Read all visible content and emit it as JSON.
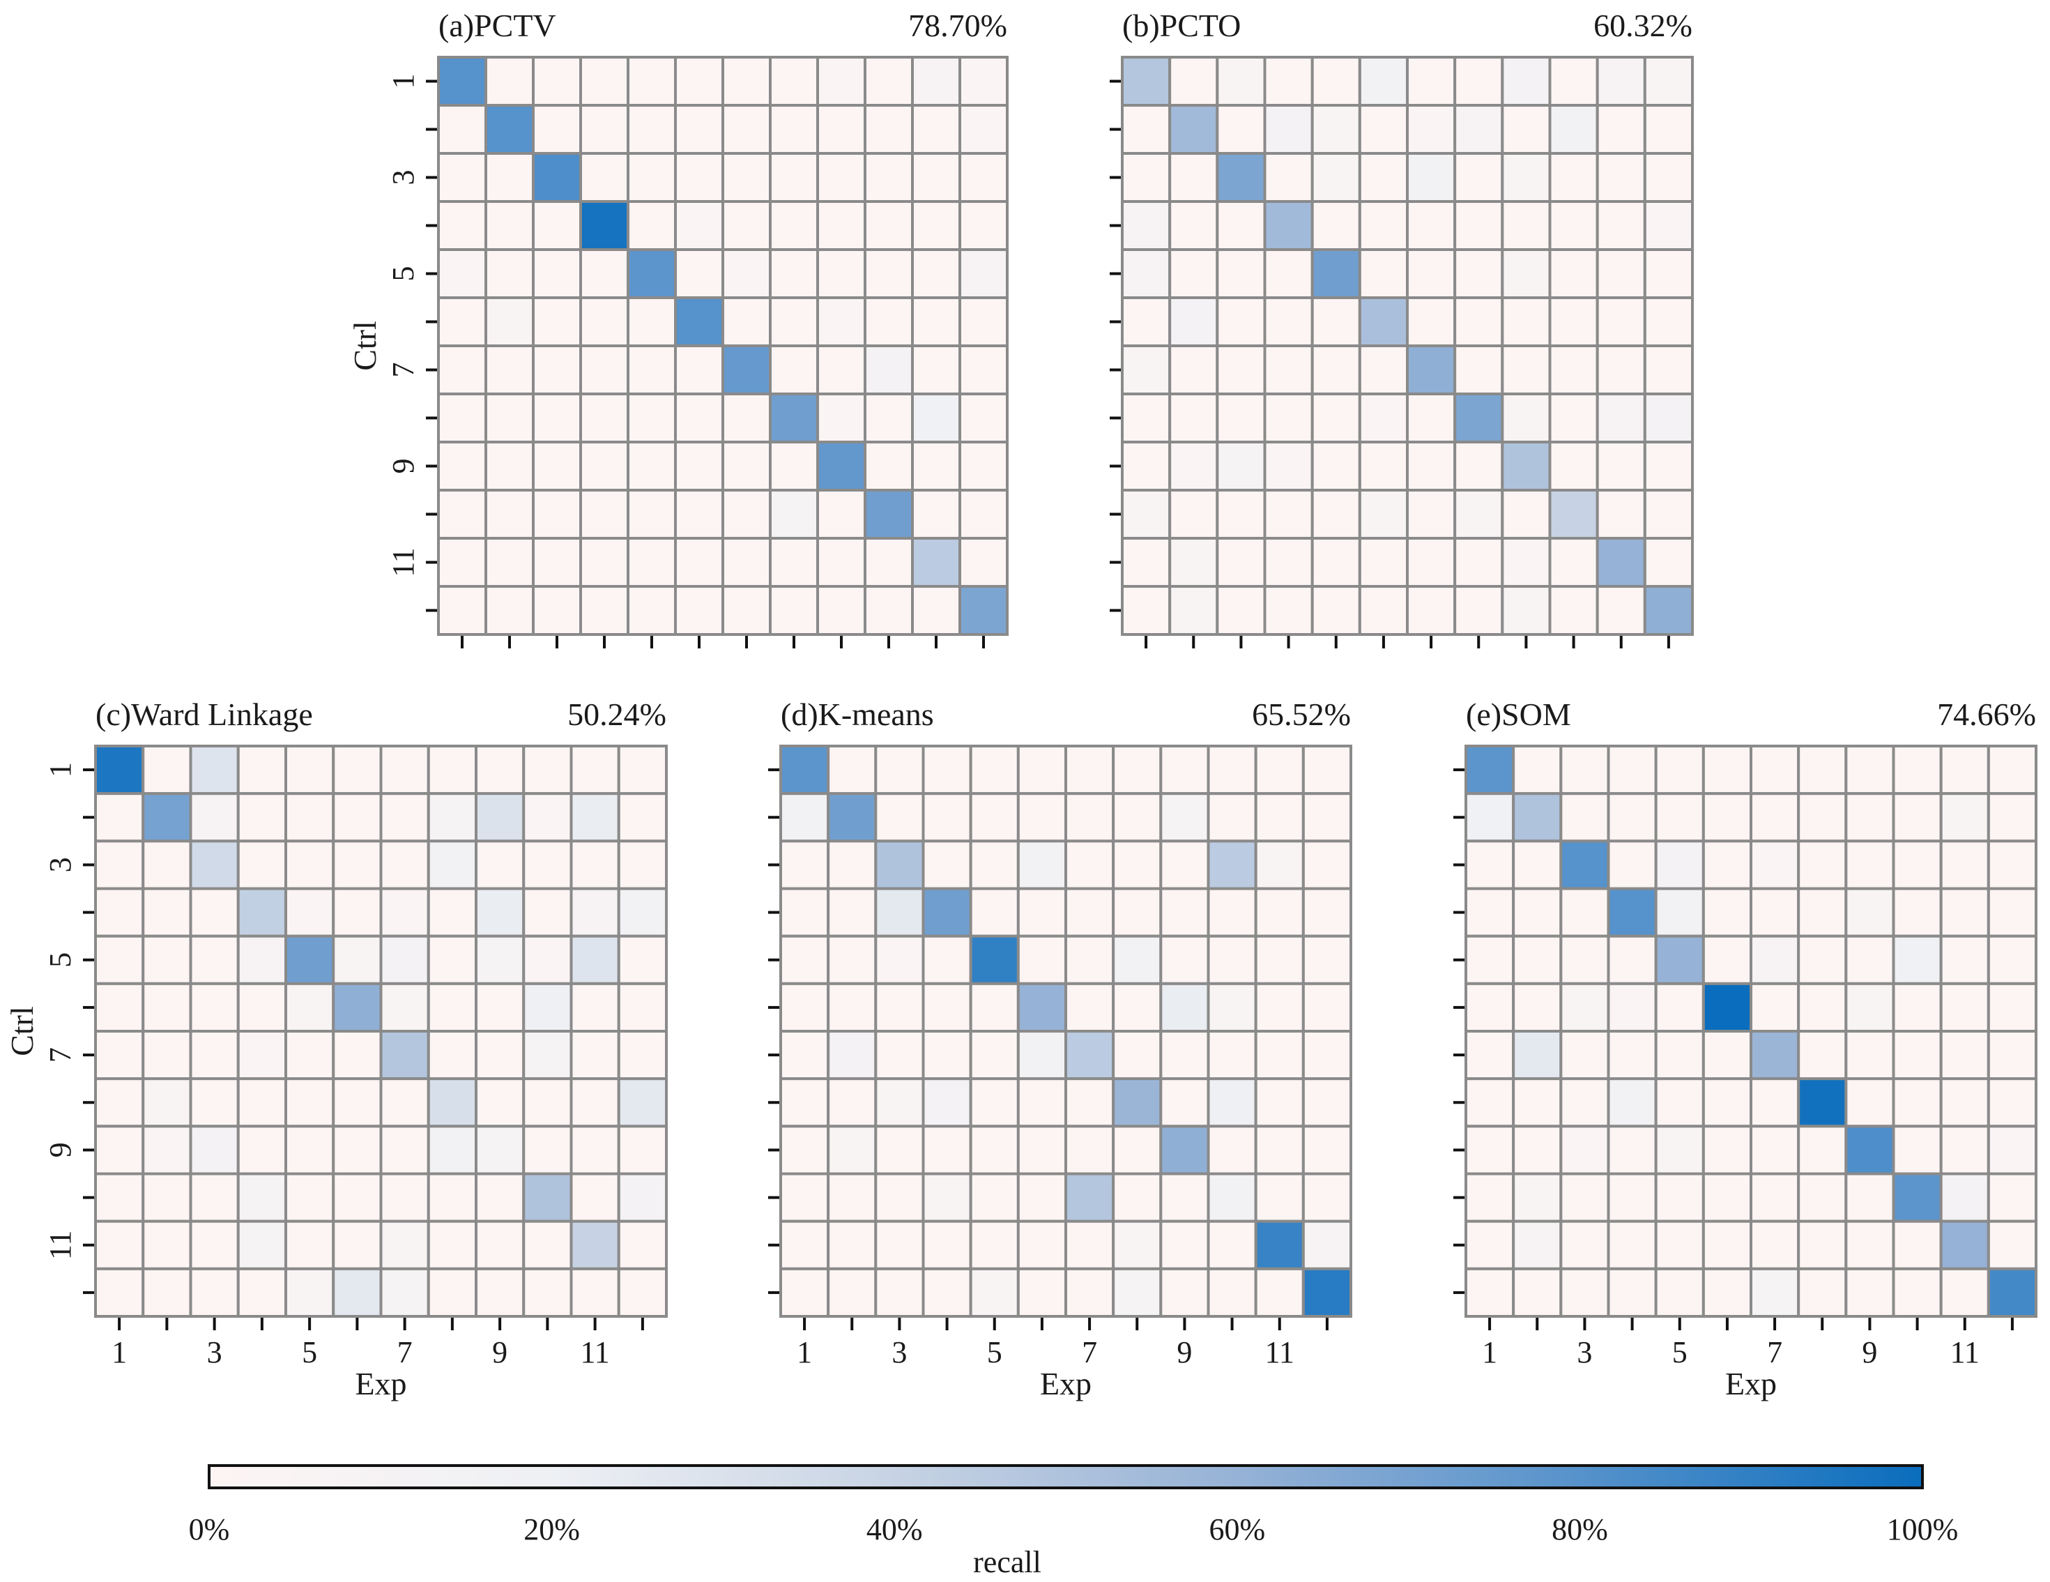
{
  "figure": {
    "colorbar": {
      "label": "recall",
      "ticks": [
        "0%",
        "20%",
        "40%",
        "60%",
        "80%",
        "100%"
      ],
      "range": [
        0,
        100
      ],
      "colors": [
        "#fdf5f4",
        "#eef0f4",
        "#c7d3e4",
        "#96b2d6",
        "#5692cb",
        "#0a6dbd"
      ]
    },
    "gridColor": "#8a8a8a",
    "cellEmpty": "#fdf5f4"
  },
  "chart_data": [
    {
      "type": "heatmap",
      "panel": "a",
      "title": "(a)PCTV",
      "score": "78.70%",
      "ylabel": "Ctrl",
      "xlabel": "",
      "yticklabels": [
        "1",
        "",
        "3",
        "",
        "5",
        "",
        "7",
        "",
        "9",
        "",
        "11",
        ""
      ],
      "xticklabels": [],
      "values": [
        [
          80,
          0,
          0,
          0,
          0,
          0,
          0,
          0,
          3,
          0,
          8,
          3
        ],
        [
          0,
          80,
          0,
          0,
          0,
          0,
          0,
          0,
          0,
          0,
          0,
          3
        ],
        [
          0,
          0,
          82,
          0,
          2,
          0,
          0,
          0,
          0,
          0,
          0,
          0
        ],
        [
          0,
          0,
          0,
          97,
          0,
          3,
          0,
          0,
          0,
          0,
          0,
          0
        ],
        [
          3,
          0,
          0,
          0,
          78,
          0,
          3,
          0,
          0,
          0,
          0,
          8
        ],
        [
          0,
          5,
          0,
          0,
          0,
          80,
          0,
          0,
          3,
          0,
          0,
          0
        ],
        [
          0,
          0,
          0,
          0,
          0,
          0,
          75,
          0,
          0,
          12,
          0,
          0
        ],
        [
          0,
          0,
          0,
          0,
          0,
          0,
          0,
          72,
          3,
          0,
          18,
          0
        ],
        [
          0,
          0,
          0,
          0,
          0,
          0,
          0,
          0,
          76,
          0,
          0,
          0
        ],
        [
          0,
          0,
          0,
          0,
          0,
          0,
          0,
          10,
          0,
          72,
          0,
          0
        ],
        [
          0,
          0,
          0,
          0,
          0,
          0,
          0,
          0,
          0,
          0,
          45,
          0
        ],
        [
          0,
          0,
          0,
          0,
          0,
          0,
          0,
          0,
          0,
          0,
          0,
          68
        ]
      ]
    },
    {
      "type": "heatmap",
      "panel": "b",
      "title": "(b)PCTO",
      "score": "60.32%",
      "ylabel": "",
      "xlabel": "",
      "yticklabels": [],
      "xticklabels": [],
      "values": [
        [
          48,
          0,
          5,
          0,
          0,
          15,
          0,
          0,
          12,
          0,
          8,
          5
        ],
        [
          0,
          55,
          0,
          12,
          5,
          0,
          3,
          8,
          0,
          15,
          0,
          0
        ],
        [
          0,
          0,
          68,
          0,
          5,
          0,
          15,
          0,
          5,
          0,
          0,
          0
        ],
        [
          8,
          0,
          0,
          55,
          0,
          0,
          0,
          0,
          0,
          0,
          0,
          3
        ],
        [
          8,
          0,
          0,
          0,
          72,
          0,
          0,
          0,
          5,
          0,
          0,
          0
        ],
        [
          0,
          12,
          0,
          0,
          0,
          52,
          0,
          0,
          0,
          0,
          0,
          0
        ],
        [
          5,
          0,
          0,
          0,
          0,
          0,
          62,
          0,
          0,
          0,
          0,
          0
        ],
        [
          0,
          0,
          0,
          0,
          0,
          3,
          0,
          68,
          5,
          0,
          8,
          12
        ],
        [
          0,
          3,
          10,
          3,
          0,
          0,
          0,
          0,
          50,
          0,
          0,
          0
        ],
        [
          5,
          0,
          0,
          0,
          0,
          5,
          0,
          5,
          0,
          40,
          0,
          0
        ],
        [
          0,
          5,
          0,
          0,
          0,
          0,
          0,
          0,
          3,
          0,
          60,
          0
        ],
        [
          0,
          5,
          0,
          0,
          0,
          0,
          0,
          0,
          5,
          0,
          0,
          62
        ]
      ]
    },
    {
      "type": "heatmap",
      "panel": "c",
      "title": "(c)Ward Linkage",
      "score": "50.24%",
      "ylabel": "Ctrl",
      "xlabel": "Exp",
      "yticklabels": [
        "1",
        "",
        "3",
        "",
        "5",
        "",
        "7",
        "",
        "9",
        "",
        "11",
        ""
      ],
      "xticklabels": [
        "1",
        "",
        "3",
        "",
        "5",
        "",
        "7",
        "",
        "9",
        "",
        "11",
        ""
      ],
      "values": [
        [
          95,
          0,
          28,
          0,
          0,
          0,
          0,
          0,
          0,
          0,
          0,
          0
        ],
        [
          0,
          70,
          8,
          0,
          0,
          0,
          0,
          10,
          30,
          3,
          22,
          0
        ],
        [
          0,
          0,
          35,
          0,
          0,
          0,
          0,
          15,
          0,
          0,
          0,
          0
        ],
        [
          0,
          0,
          0,
          42,
          3,
          0,
          3,
          0,
          22,
          0,
          8,
          15
        ],
        [
          0,
          0,
          0,
          8,
          72,
          5,
          12,
          0,
          10,
          3,
          28,
          0
        ],
        [
          0,
          0,
          0,
          0,
          5,
          62,
          5,
          0,
          0,
          20,
          0,
          0
        ],
        [
          0,
          0,
          0,
          3,
          2,
          0,
          48,
          0,
          0,
          10,
          0,
          0
        ],
        [
          0,
          5,
          0,
          0,
          0,
          0,
          0,
          32,
          0,
          0,
          0,
          25
        ],
        [
          0,
          3,
          12,
          0,
          0,
          0,
          0,
          15,
          10,
          0,
          0,
          0
        ],
        [
          0,
          0,
          0,
          10,
          0,
          0,
          0,
          0,
          0,
          50,
          0,
          12
        ],
        [
          0,
          0,
          0,
          10,
          0,
          0,
          5,
          0,
          0,
          0,
          40,
          0
        ],
        [
          0,
          0,
          0,
          0,
          5,
          25,
          10,
          0,
          0,
          0,
          0,
          0
        ]
      ]
    },
    {
      "type": "heatmap",
      "panel": "d",
      "title": "(d)K-means",
      "score": "65.52%",
      "ylabel": "",
      "xlabel": "Exp",
      "yticklabels": [],
      "xticklabels": [
        "1",
        "",
        "3",
        "",
        "5",
        "",
        "7",
        "",
        "9",
        "",
        "11",
        ""
      ],
      "values": [
        [
          78,
          0,
          0,
          0,
          0,
          0,
          0,
          0,
          0,
          0,
          0,
          0
        ],
        [
          15,
          72,
          0,
          0,
          0,
          0,
          0,
          0,
          10,
          0,
          0,
          0
        ],
        [
          0,
          0,
          50,
          0,
          0,
          15,
          0,
          0,
          0,
          45,
          5,
          0
        ],
        [
          0,
          0,
          25,
          72,
          0,
          0,
          0,
          0,
          0,
          0,
          0,
          0
        ],
        [
          0,
          0,
          3,
          0,
          90,
          0,
          0,
          15,
          0,
          0,
          0,
          0
        ],
        [
          0,
          0,
          0,
          0,
          0,
          60,
          0,
          0,
          22,
          5,
          0,
          0
        ],
        [
          0,
          12,
          0,
          0,
          0,
          15,
          45,
          0,
          0,
          0,
          0,
          0
        ],
        [
          0,
          0,
          5,
          12,
          0,
          0,
          0,
          58,
          0,
          20,
          0,
          0
        ],
        [
          0,
          5,
          0,
          0,
          0,
          0,
          0,
          0,
          62,
          0,
          0,
          0
        ],
        [
          0,
          0,
          0,
          5,
          0,
          0,
          48,
          0,
          0,
          15,
          0,
          0
        ],
        [
          0,
          0,
          0,
          0,
          0,
          0,
          0,
          5,
          0,
          0,
          88,
          8
        ],
        [
          0,
          0,
          0,
          0,
          5,
          0,
          0,
          10,
          0,
          0,
          0,
          92
        ]
      ]
    },
    {
      "type": "heatmap",
      "panel": "e",
      "title": "(e)SOM",
      "score": "74.66%",
      "ylabel": "",
      "xlabel": "Exp",
      "yticklabels": [],
      "xticklabels": [
        "1",
        "",
        "3",
        "",
        "5",
        "",
        "7",
        "",
        "9",
        "",
        "11",
        ""
      ],
      "values": [
        [
          78,
          0,
          0,
          0,
          0,
          0,
          0,
          0,
          0,
          0,
          0,
          0
        ],
        [
          18,
          50,
          0,
          0,
          0,
          0,
          0,
          0,
          0,
          0,
          5,
          0
        ],
        [
          0,
          0,
          80,
          0,
          12,
          0,
          3,
          0,
          0,
          0,
          0,
          0
        ],
        [
          0,
          0,
          0,
          80,
          15,
          0,
          0,
          0,
          5,
          0,
          0,
          0
        ],
        [
          0,
          0,
          0,
          0,
          60,
          0,
          8,
          0,
          0,
          18,
          0,
          0
        ],
        [
          0,
          0,
          5,
          3,
          0,
          100,
          0,
          0,
          5,
          0,
          0,
          0
        ],
        [
          0,
          25,
          0,
          0,
          0,
          0,
          58,
          0,
          0,
          0,
          0,
          0
        ],
        [
          0,
          0,
          0,
          15,
          0,
          0,
          0,
          98,
          0,
          0,
          0,
          0
        ],
        [
          0,
          0,
          3,
          0,
          5,
          0,
          0,
          0,
          82,
          0,
          0,
          3
        ],
        [
          0,
          5,
          0,
          0,
          0,
          0,
          0,
          0,
          0,
          78,
          12,
          0
        ],
        [
          0,
          8,
          0,
          0,
          0,
          0,
          0,
          0,
          0,
          0,
          60,
          0
        ],
        [
          0,
          0,
          0,
          0,
          0,
          0,
          10,
          0,
          0,
          0,
          0,
          85
        ]
      ]
    }
  ]
}
